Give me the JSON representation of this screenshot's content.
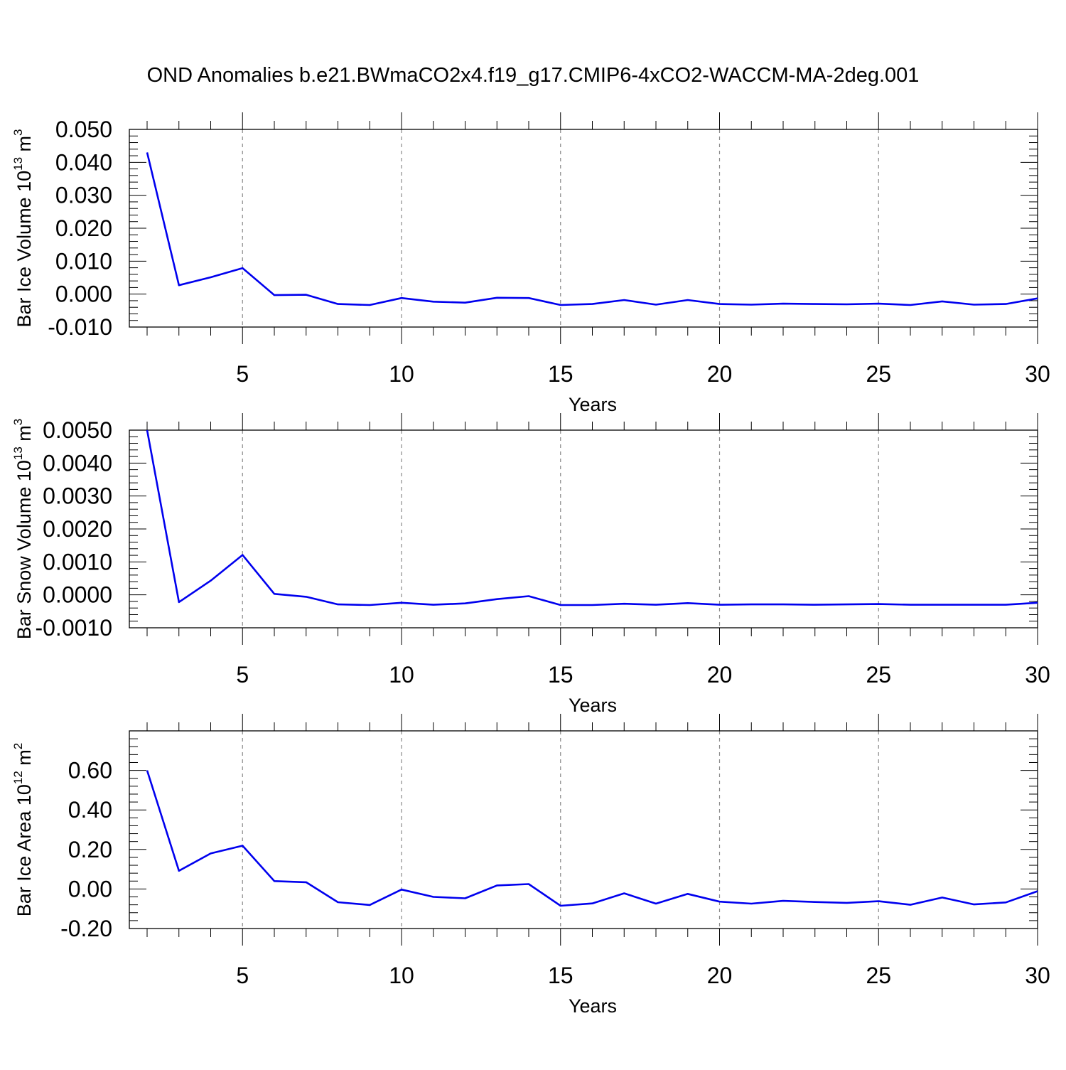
{
  "title": "OND Anomalies b.e21.BWmaCO2x4.f19_g17.CMIP6-4xCO2-WACCM-MA-2deg.001",
  "colors": {
    "line": "#0000ee",
    "grid": "#888888",
    "axis": "#000000"
  },
  "chart_data": [
    {
      "type": "line",
      "ylabel": {
        "main": "Bar Ice Volume 10",
        "sup": "13",
        "unit": " m",
        "unit_sup": "3"
      },
      "xlabel": "Years",
      "xlim": [
        2,
        30
      ],
      "ylim": [
        -0.01,
        0.05
      ],
      "yticks": [
        -0.01,
        0.0,
        0.01,
        0.02,
        0.03,
        0.04,
        0.05
      ],
      "ytick_labels": [
        "-0.010",
        "0.000",
        "0.010",
        "0.020",
        "0.030",
        "0.040",
        "0.050"
      ],
      "xticks": [
        5,
        10,
        15,
        20,
        25,
        30
      ],
      "xtick_labels": [
        "5",
        "10",
        "15",
        "20",
        "25",
        "30"
      ],
      "grid": "vertical dashed at major x ticks",
      "x": [
        2,
        3,
        4,
        5,
        6,
        7,
        8,
        9,
        10,
        11,
        12,
        13,
        14,
        15,
        16,
        17,
        18,
        19,
        20,
        21,
        22,
        23,
        24,
        25,
        26,
        27,
        28,
        29,
        30
      ],
      "values": [
        0.043,
        0.0027,
        0.0051,
        0.0079,
        -0.0003,
        -0.0002,
        -0.003,
        -0.0033,
        -0.0012,
        -0.0023,
        -0.0026,
        -0.0011,
        -0.0012,
        -0.0033,
        -0.003,
        -0.0018,
        -0.0032,
        -0.0018,
        -0.003,
        -0.0032,
        -0.0029,
        -0.003,
        -0.0031,
        -0.0029,
        -0.0033,
        -0.0022,
        -0.0032,
        -0.003,
        -0.0013
      ]
    },
    {
      "type": "line",
      "ylabel": {
        "main": "Bar Snow Volume 10",
        "sup": "13",
        "unit": " m",
        "unit_sup": "3"
      },
      "xlabel": "Years",
      "xlim": [
        2,
        30
      ],
      "ylim": [
        -0.001,
        0.005
      ],
      "yticks": [
        -0.001,
        0.0,
        0.001,
        0.002,
        0.003,
        0.004,
        0.005
      ],
      "ytick_labels": [
        "-0.0010",
        "0.0000",
        "0.0010",
        "0.0020",
        "0.0030",
        "0.0040",
        "0.0050"
      ],
      "xticks": [
        5,
        10,
        15,
        20,
        25,
        30
      ],
      "xtick_labels": [
        "5",
        "10",
        "15",
        "20",
        "25",
        "30"
      ],
      "grid": "vertical dashed at major x ticks",
      "x": [
        2,
        3,
        4,
        5,
        6,
        7,
        8,
        9,
        10,
        11,
        12,
        13,
        14,
        15,
        16,
        17,
        18,
        19,
        20,
        21,
        22,
        23,
        24,
        25,
        26,
        27,
        28,
        29,
        30
      ],
      "values": [
        0.005,
        -0.00022,
        0.00043,
        0.00121,
        3e-05,
        -6e-05,
        -0.00029,
        -0.00031,
        -0.00024,
        -0.0003,
        -0.00026,
        -0.00013,
        -4e-05,
        -0.00031,
        -0.00031,
        -0.00027,
        -0.0003,
        -0.00025,
        -0.0003,
        -0.00029,
        -0.00029,
        -0.0003,
        -0.00029,
        -0.00028,
        -0.0003,
        -0.0003,
        -0.0003,
        -0.0003,
        -0.00024
      ]
    },
    {
      "type": "line",
      "ylabel": {
        "main": "Bar Ice Area 10",
        "sup": "12",
        "unit": " m",
        "unit_sup": "2"
      },
      "xlabel": "Years",
      "xlim": [
        2,
        30
      ],
      "ylim": [
        -0.2,
        0.8
      ],
      "yticks": [
        -0.2,
        0.0,
        0.2,
        0.4,
        0.6,
        0.8
      ],
      "ytick_labels": [
        "-0.20",
        "0.00",
        "0.20",
        "0.40",
        "0.60",
        ""
      ],
      "xticks": [
        5,
        10,
        15,
        20,
        25,
        30
      ],
      "xtick_labels": [
        "5",
        "10",
        "15",
        "20",
        "25",
        "30"
      ],
      "grid": "vertical dashed at major x ticks",
      "x": [
        2,
        3,
        4,
        5,
        6,
        7,
        8,
        9,
        10,
        11,
        12,
        13,
        14,
        15,
        16,
        17,
        18,
        19,
        20,
        21,
        22,
        23,
        24,
        25,
        26,
        27,
        28,
        29,
        30
      ],
      "values": [
        0.6,
        0.092,
        0.18,
        0.219,
        0.04,
        0.034,
        -0.067,
        -0.081,
        -0.003,
        -0.04,
        -0.047,
        0.018,
        0.025,
        -0.085,
        -0.073,
        -0.022,
        -0.074,
        -0.025,
        -0.064,
        -0.074,
        -0.06,
        -0.066,
        -0.07,
        -0.062,
        -0.08,
        -0.043,
        -0.078,
        -0.068,
        -0.011
      ]
    }
  ]
}
